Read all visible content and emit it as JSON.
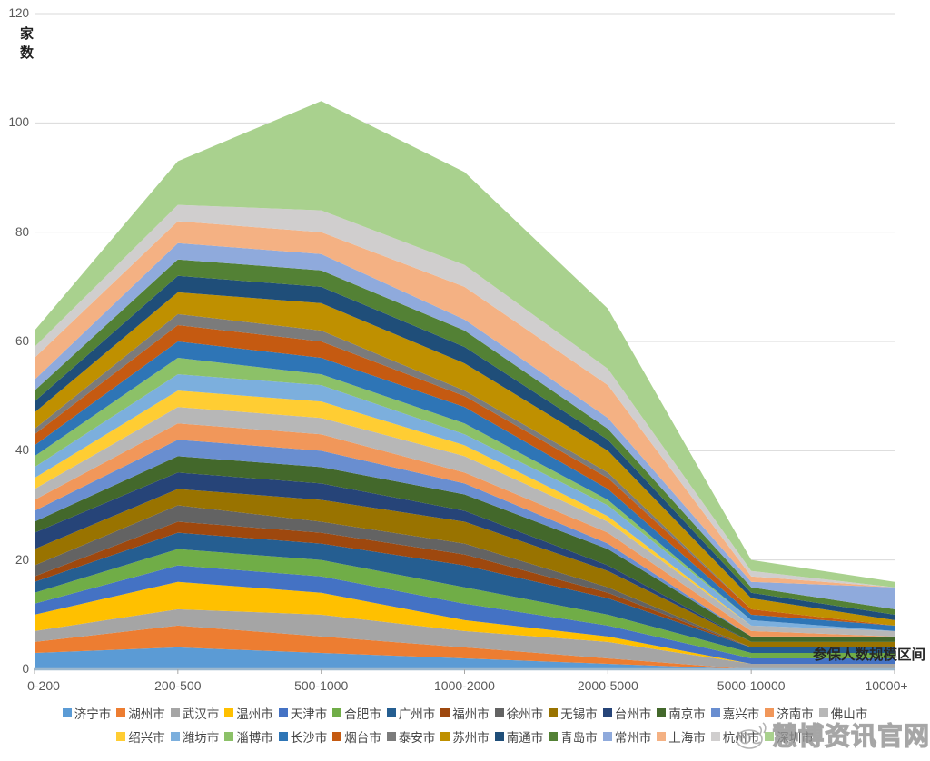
{
  "y_axis": {
    "title": "家数",
    "ticks": [
      120,
      100,
      80,
      60,
      40,
      20,
      0
    ]
  },
  "x_axis": {
    "title": "参保人数规模区间"
  },
  "watermark": {
    "text": "慧博资讯官网",
    "icon": "weibo-eye-icon"
  },
  "chart_data": {
    "type": "area",
    "stacked": true,
    "title": "",
    "xlabel": "参保人数规模区间",
    "ylabel": "家数",
    "ylim": [
      0,
      120
    ],
    "y_tick_step": 20,
    "grid": true,
    "legend_position": "bottom",
    "categories": [
      "0-200",
      "200-500",
      "500-1000",
      "1000-2000",
      "2000-5000",
      "5000-10000",
      "10000+"
    ],
    "totals_estimated": [
      62,
      93,
      104,
      91,
      66,
      20,
      16
    ],
    "series": [
      {
        "name": "济宁市",
        "color": "#5B9BD5",
        "values": [
          3,
          4,
          3,
          2,
          1,
          0,
          0
        ]
      },
      {
        "name": "湖州市",
        "color": "#ED7D31",
        "values": [
          2,
          4,
          3,
          2,
          1,
          0,
          0
        ]
      },
      {
        "name": "武汉市",
        "color": "#A5A5A5",
        "values": [
          2,
          3,
          4,
          3,
          3,
          1,
          1
        ]
      },
      {
        "name": "温州市",
        "color": "#FFC000",
        "values": [
          3,
          5,
          4,
          2,
          1,
          0,
          0
        ]
      },
      {
        "name": "天津市",
        "color": "#4472C4",
        "values": [
          2,
          3,
          3,
          3,
          2,
          1,
          1
        ]
      },
      {
        "name": "合肥市",
        "color": "#70AD47",
        "values": [
          2,
          3,
          3,
          3,
          2,
          1,
          1
        ]
      },
      {
        "name": "广州市",
        "color": "#255E91",
        "values": [
          2,
          3,
          3,
          4,
          3,
          1,
          1
        ]
      },
      {
        "name": "福州市",
        "color": "#9E480E",
        "values": [
          1,
          2,
          2,
          2,
          1,
          0,
          0
        ]
      },
      {
        "name": "徐州市",
        "color": "#636363",
        "values": [
          2,
          3,
          2,
          2,
          1,
          0,
          0
        ]
      },
      {
        "name": "无锡市",
        "color": "#997300",
        "values": [
          3,
          3,
          4,
          4,
          3,
          1,
          1
        ]
      },
      {
        "name": "台州市",
        "color": "#264478",
        "values": [
          3,
          3,
          3,
          2,
          1,
          0,
          0
        ]
      },
      {
        "name": "南京市",
        "color": "#43682B",
        "values": [
          2,
          3,
          3,
          3,
          3,
          1,
          1
        ]
      },
      {
        "name": "嘉兴市",
        "color": "#698ED0",
        "values": [
          2,
          3,
          3,
          2,
          1,
          0,
          0
        ]
      },
      {
        "name": "济南市",
        "color": "#F1975A",
        "values": [
          2,
          3,
          3,
          2,
          2,
          1,
          0
        ]
      },
      {
        "name": "佛山市",
        "color": "#B7B7B7",
        "values": [
          2,
          3,
          3,
          3,
          2,
          1,
          1
        ]
      },
      {
        "name": "绍兴市",
        "color": "#FFCD33",
        "values": [
          2,
          3,
          3,
          2,
          1,
          0,
          0
        ]
      },
      {
        "name": "潍坊市",
        "color": "#7CAFDD",
        "values": [
          2,
          3,
          3,
          2,
          2,
          1,
          0
        ]
      },
      {
        "name": "淄博市",
        "color": "#8CC168",
        "values": [
          2,
          3,
          2,
          2,
          1,
          0,
          0
        ]
      },
      {
        "name": "长沙市",
        "color": "#2E75B6",
        "values": [
          2,
          3,
          3,
          3,
          2,
          1,
          1
        ]
      },
      {
        "name": "烟台市",
        "color": "#C55A11",
        "values": [
          2,
          3,
          3,
          2,
          2,
          1,
          0
        ]
      },
      {
        "name": "泰安市",
        "color": "#7B7B7B",
        "values": [
          1,
          2,
          2,
          1,
          1,
          0,
          0
        ]
      },
      {
        "name": "苏州市",
        "color": "#BF9000",
        "values": [
          3,
          4,
          5,
          5,
          4,
          2,
          1
        ]
      },
      {
        "name": "南通市",
        "color": "#1F4E79",
        "values": [
          2,
          3,
          3,
          3,
          2,
          1,
          1
        ]
      },
      {
        "name": "青岛市",
        "color": "#538135",
        "values": [
          2,
          3,
          3,
          3,
          2,
          1,
          1
        ]
      },
      {
        "name": "常州市",
        "color": "#8FAADC",
        "values": [
          2,
          3,
          3,
          2,
          2,
          1,
          4
        ]
      },
      {
        "name": "上海市",
        "color": "#F4B183",
        "values": [
          4,
          4,
          4,
          6,
          6,
          1,
          0
        ]
      },
      {
        "name": "杭州市",
        "color": "#D0CECE",
        "values": [
          2,
          3,
          4,
          4,
          3,
          1,
          0
        ]
      },
      {
        "name": "深圳市",
        "color": "#A9D18E",
        "values": [
          3,
          8,
          20,
          17,
          11,
          2,
          1
        ]
      }
    ],
    "style": {
      "grid_color": "#DADADA",
      "axis_line_color": "#9DB8CE",
      "tick_color": "#A6A6A6",
      "tick_label_color": "#595959",
      "legend_rows": [
        15,
        13
      ]
    }
  }
}
